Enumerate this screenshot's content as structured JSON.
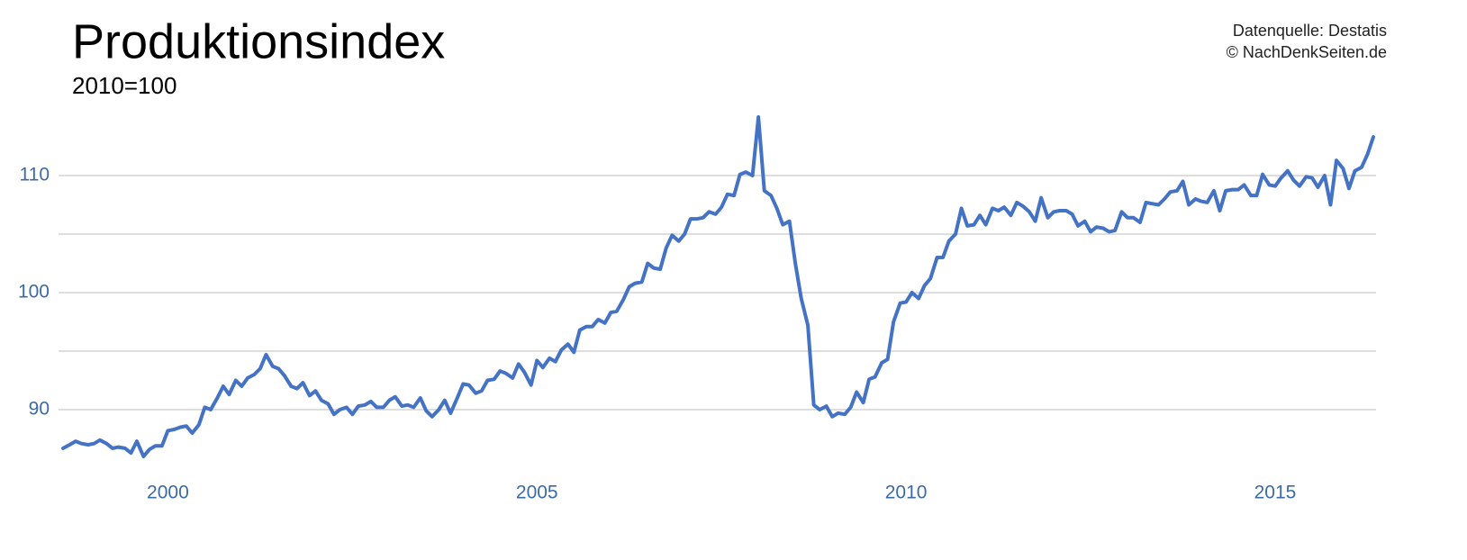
{
  "chart_data": {
    "type": "line",
    "title": "Produktionsindex",
    "subtitle": "2010=100",
    "source": [
      "Datenquelle: Destatis",
      "© NachDenkSeiten.de"
    ],
    "x": [
      1998.58,
      1998.67,
      1998.75,
      1998.83,
      1998.92,
      1999.0,
      1999.08,
      1999.17,
      1999.25,
      1999.33,
      1999.42,
      1999.5,
      1999.58,
      1999.67,
      1999.75,
      1999.83,
      1999.92,
      2000.0,
      2000.08,
      2000.17,
      2000.25,
      2000.33,
      2000.42,
      2000.5,
      2000.58,
      2000.67,
      2000.75,
      2000.83,
      2000.92,
      2001.0,
      2001.08,
      2001.17,
      2001.25,
      2001.33,
      2001.42,
      2001.5,
      2001.58,
      2001.67,
      2001.75,
      2001.83,
      2001.92,
      2002.0,
      2002.08,
      2002.17,
      2002.25,
      2002.33,
      2002.42,
      2002.5,
      2002.58,
      2002.67,
      2002.75,
      2002.83,
      2002.92,
      2003.0,
      2003.08,
      2003.17,
      2003.25,
      2003.33,
      2003.42,
      2003.5,
      2003.58,
      2003.67,
      2003.75,
      2003.83,
      2003.92,
      2004.0,
      2004.08,
      2004.17,
      2004.25,
      2004.33,
      2004.42,
      2004.5,
      2004.58,
      2004.67,
      2004.75,
      2004.83,
      2004.92,
      2005.0,
      2005.08,
      2005.17,
      2005.25,
      2005.33,
      2005.42,
      2005.5,
      2005.58,
      2005.67,
      2005.75,
      2005.83,
      2005.92,
      2006.0,
      2006.08,
      2006.17,
      2006.25,
      2006.33,
      2006.42,
      2006.5,
      2006.58,
      2006.67,
      2006.75,
      2006.83,
      2006.92,
      2007.0,
      2007.08,
      2007.17,
      2007.25,
      2007.33,
      2007.42,
      2007.5,
      2007.58,
      2007.67,
      2007.75,
      2007.83,
      2007.92,
      2008.0,
      2008.08,
      2008.17,
      2008.25,
      2008.33,
      2008.42,
      2008.5,
      2008.58,
      2008.67,
      2008.75,
      2008.83,
      2008.92,
      2009.0,
      2009.08,
      2009.17,
      2009.25,
      2009.33,
      2009.42,
      2009.5,
      2009.58,
      2009.67,
      2009.75,
      2009.83,
      2009.92,
      2010.0,
      2010.08,
      2010.17,
      2010.25,
      2010.33,
      2010.42,
      2010.5,
      2010.58,
      2010.67,
      2010.75,
      2010.83,
      2010.92,
      2011.0,
      2011.08,
      2011.17,
      2011.25,
      2011.33,
      2011.42,
      2011.5,
      2011.58,
      2011.67,
      2011.75,
      2011.83,
      2011.92,
      2012.0,
      2012.08,
      2012.17,
      2012.25,
      2012.33,
      2012.42,
      2012.5,
      2012.58,
      2012.67,
      2012.75,
      2012.83,
      2012.92,
      2013.0,
      2013.08,
      2013.17,
      2013.25,
      2013.33,
      2013.42,
      2013.5,
      2013.58,
      2013.67,
      2013.75,
      2013.83,
      2013.92,
      2014.0,
      2014.08,
      2014.17,
      2014.25,
      2014.33,
      2014.42,
      2014.5,
      2014.58,
      2014.67,
      2014.75,
      2014.83,
      2014.92,
      2015.0,
      2015.08,
      2015.17,
      2015.25,
      2015.33,
      2015.42,
      2015.5,
      2015.58,
      2015.67,
      2015.75,
      2015.83,
      2015.92,
      2016.0,
      2016.08,
      2016.17,
      2016.25,
      2016.33
    ],
    "series": [
      {
        "color": "#4472c4",
        "values": [
          86.7,
          87.0,
          87.3,
          87.1,
          87.0,
          87.1,
          87.4,
          87.1,
          86.7,
          86.8,
          86.7,
          86.3,
          87.3,
          86.0,
          86.6,
          86.9,
          86.9,
          88.2,
          88.3,
          88.5,
          88.6,
          88.0,
          88.7,
          90.2,
          90.0,
          91.0,
          92.0,
          91.3,
          92.5,
          92.0,
          92.7,
          93.0,
          93.5,
          94.7,
          93.7,
          93.5,
          92.9,
          92.0,
          91.8,
          92.3,
          91.2,
          91.6,
          90.8,
          90.5,
          89.6,
          90.0,
          90.2,
          89.6,
          90.3,
          90.4,
          90.7,
          90.2,
          90.2,
          90.8,
          91.1,
          90.3,
          90.4,
          90.2,
          91.0,
          89.9,
          89.4,
          90.0,
          90.8,
          89.7,
          91.0,
          92.2,
          92.1,
          91.4,
          91.6,
          92.5,
          92.6,
          93.3,
          93.1,
          92.7,
          93.9,
          93.2,
          92.1,
          94.2,
          93.6,
          94.4,
          94.1,
          95.1,
          95.6,
          94.9,
          96.8,
          97.1,
          97.1,
          97.7,
          97.4,
          98.3,
          98.4,
          99.4,
          100.5,
          100.8,
          100.9,
          102.5,
          102.1,
          102.0,
          103.8,
          104.9,
          104.4,
          105.0,
          106.3,
          106.3,
          106.4,
          106.9,
          106.7,
          107.3,
          108.4,
          108.3,
          110.1,
          110.3,
          110.0,
          115.0,
          108.7,
          108.3,
          107.2,
          105.8,
          106.1,
          102.5,
          99.5,
          97.2,
          90.4,
          90.0,
          90.3,
          89.4,
          89.7,
          89.6,
          90.2,
          91.5,
          90.6,
          92.6,
          92.8,
          94.0,
          94.3,
          97.5,
          99.1,
          99.2,
          100.0,
          99.5,
          100.6,
          101.2,
          103.0,
          103.0,
          104.4,
          105.0,
          107.2,
          105.7,
          105.8,
          106.6,
          105.8,
          107.2,
          107.0,
          107.3,
          106.6,
          107.7,
          107.4,
          106.9,
          106.1,
          108.1,
          106.4,
          106.9,
          107.0,
          107.0,
          106.7,
          105.7,
          106.1,
          105.2,
          105.6,
          105.5,
          105.2,
          105.3,
          106.9,
          106.4,
          106.4,
          106.0,
          107.7,
          107.6,
          107.5,
          108.0,
          108.6,
          108.7,
          109.5,
          107.5,
          108.0,
          107.8,
          107.7,
          108.7,
          107.0,
          108.7,
          108.8,
          108.8,
          109.2,
          108.3,
          108.3,
          110.1,
          109.2,
          109.1,
          109.8,
          110.4,
          109.6,
          109.1,
          109.9,
          109.8,
          109.0,
          110.0,
          107.5,
          111.3,
          110.6,
          108.9,
          110.4,
          110.7,
          111.8,
          113.3
        ]
      }
    ],
    "xlim": [
      1998.58,
      2016.33
    ],
    "xticks": [
      2000,
      2005,
      2010,
      2015
    ],
    "ylim": [
      85,
      115
    ],
    "yticks": [
      90,
      100,
      110
    ],
    "minor_gridlines": [
      95,
      105
    ],
    "grid": true
  }
}
